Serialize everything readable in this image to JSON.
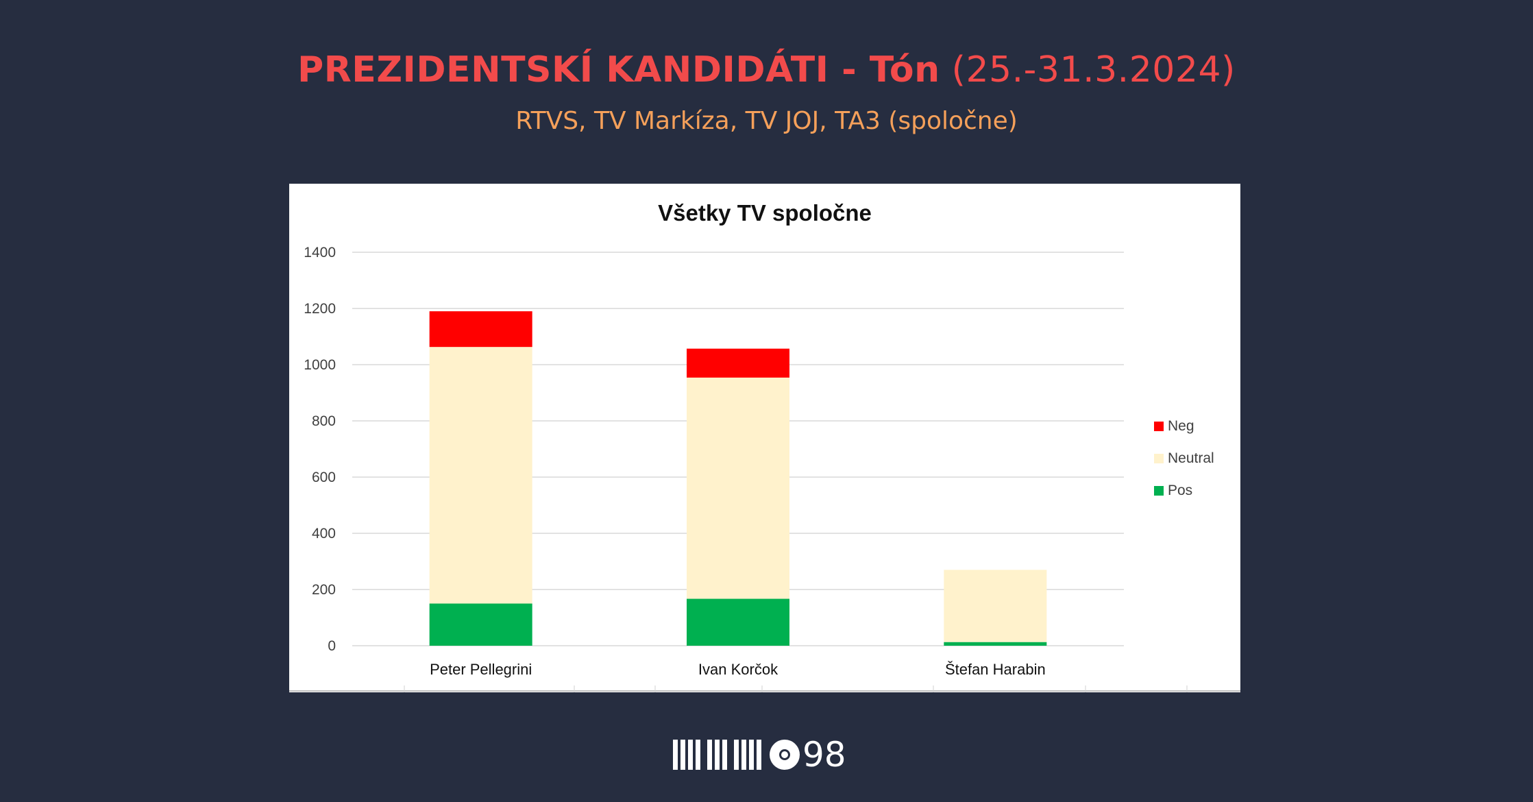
{
  "header": {
    "title_strong": "PREZIDENTSKÍ KANDIDÁTI - Tón",
    "title_light": "(25.-31.3.2024)",
    "subtitle": "RTVS, TV Markíza, TV JOJ, TA3 (spoločne)"
  },
  "logo": {
    "number": "98"
  },
  "chart_data": {
    "type": "bar",
    "stacked": true,
    "title": "Všetky TV spoločne",
    "xlabel": "",
    "ylabel": "",
    "ylim": [
      0,
      1400
    ],
    "yticks": [
      0,
      200,
      400,
      600,
      800,
      1000,
      1200,
      1400
    ],
    "grid": true,
    "legend_position": "right",
    "categories": [
      "Peter Pellegrini",
      "Ivan Korčok",
      "Štefan Harabin"
    ],
    "series": [
      {
        "name": "Pos",
        "color": "#00b050",
        "values": [
          150,
          167,
          13
        ]
      },
      {
        "name": "Neutral",
        "color": "#fff2cc",
        "values": [
          913,
          787,
          257
        ]
      },
      {
        "name": "Neg",
        "color": "#ff0000",
        "values": [
          127,
          103,
          0
        ]
      }
    ],
    "legend_order": [
      "Neg",
      "Neutral",
      "Pos"
    ]
  }
}
